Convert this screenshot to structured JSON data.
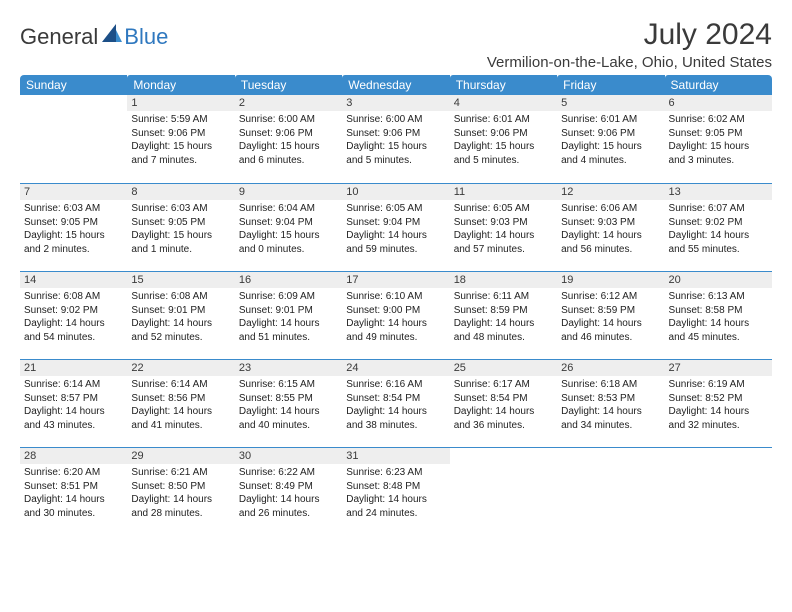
{
  "logo": {
    "text1": "General",
    "text2": "Blue"
  },
  "title": "July 2024",
  "location": "Vermilion-on-the-Lake, Ohio, United States",
  "theme": {
    "header_bg": "#3a8bcc",
    "header_fg": "#ffffff",
    "row_divider": "#3a8bcc",
    "daynum_bg": "#eeeeee",
    "page_bg": "#ffffff",
    "text_color": "#3a3a3a"
  },
  "weekdays": [
    "Sunday",
    "Monday",
    "Tuesday",
    "Wednesday",
    "Thursday",
    "Friday",
    "Saturday"
  ],
  "weeks": [
    [
      {
        "n": "",
        "sunrise": "",
        "sunset": "",
        "daylight": ""
      },
      {
        "n": "1",
        "sunrise": "Sunrise: 5:59 AM",
        "sunset": "Sunset: 9:06 PM",
        "daylight": "Daylight: 15 hours and 7 minutes."
      },
      {
        "n": "2",
        "sunrise": "Sunrise: 6:00 AM",
        "sunset": "Sunset: 9:06 PM",
        "daylight": "Daylight: 15 hours and 6 minutes."
      },
      {
        "n": "3",
        "sunrise": "Sunrise: 6:00 AM",
        "sunset": "Sunset: 9:06 PM",
        "daylight": "Daylight: 15 hours and 5 minutes."
      },
      {
        "n": "4",
        "sunrise": "Sunrise: 6:01 AM",
        "sunset": "Sunset: 9:06 PM",
        "daylight": "Daylight: 15 hours and 5 minutes."
      },
      {
        "n": "5",
        "sunrise": "Sunrise: 6:01 AM",
        "sunset": "Sunset: 9:06 PM",
        "daylight": "Daylight: 15 hours and 4 minutes."
      },
      {
        "n": "6",
        "sunrise": "Sunrise: 6:02 AM",
        "sunset": "Sunset: 9:05 PM",
        "daylight": "Daylight: 15 hours and 3 minutes."
      }
    ],
    [
      {
        "n": "7",
        "sunrise": "Sunrise: 6:03 AM",
        "sunset": "Sunset: 9:05 PM",
        "daylight": "Daylight: 15 hours and 2 minutes."
      },
      {
        "n": "8",
        "sunrise": "Sunrise: 6:03 AM",
        "sunset": "Sunset: 9:05 PM",
        "daylight": "Daylight: 15 hours and 1 minute."
      },
      {
        "n": "9",
        "sunrise": "Sunrise: 6:04 AM",
        "sunset": "Sunset: 9:04 PM",
        "daylight": "Daylight: 15 hours and 0 minutes."
      },
      {
        "n": "10",
        "sunrise": "Sunrise: 6:05 AM",
        "sunset": "Sunset: 9:04 PM",
        "daylight": "Daylight: 14 hours and 59 minutes."
      },
      {
        "n": "11",
        "sunrise": "Sunrise: 6:05 AM",
        "sunset": "Sunset: 9:03 PM",
        "daylight": "Daylight: 14 hours and 57 minutes."
      },
      {
        "n": "12",
        "sunrise": "Sunrise: 6:06 AM",
        "sunset": "Sunset: 9:03 PM",
        "daylight": "Daylight: 14 hours and 56 minutes."
      },
      {
        "n": "13",
        "sunrise": "Sunrise: 6:07 AM",
        "sunset": "Sunset: 9:02 PM",
        "daylight": "Daylight: 14 hours and 55 minutes."
      }
    ],
    [
      {
        "n": "14",
        "sunrise": "Sunrise: 6:08 AM",
        "sunset": "Sunset: 9:02 PM",
        "daylight": "Daylight: 14 hours and 54 minutes."
      },
      {
        "n": "15",
        "sunrise": "Sunrise: 6:08 AM",
        "sunset": "Sunset: 9:01 PM",
        "daylight": "Daylight: 14 hours and 52 minutes."
      },
      {
        "n": "16",
        "sunrise": "Sunrise: 6:09 AM",
        "sunset": "Sunset: 9:01 PM",
        "daylight": "Daylight: 14 hours and 51 minutes."
      },
      {
        "n": "17",
        "sunrise": "Sunrise: 6:10 AM",
        "sunset": "Sunset: 9:00 PM",
        "daylight": "Daylight: 14 hours and 49 minutes."
      },
      {
        "n": "18",
        "sunrise": "Sunrise: 6:11 AM",
        "sunset": "Sunset: 8:59 PM",
        "daylight": "Daylight: 14 hours and 48 minutes."
      },
      {
        "n": "19",
        "sunrise": "Sunrise: 6:12 AM",
        "sunset": "Sunset: 8:59 PM",
        "daylight": "Daylight: 14 hours and 46 minutes."
      },
      {
        "n": "20",
        "sunrise": "Sunrise: 6:13 AM",
        "sunset": "Sunset: 8:58 PM",
        "daylight": "Daylight: 14 hours and 45 minutes."
      }
    ],
    [
      {
        "n": "21",
        "sunrise": "Sunrise: 6:14 AM",
        "sunset": "Sunset: 8:57 PM",
        "daylight": "Daylight: 14 hours and 43 minutes."
      },
      {
        "n": "22",
        "sunrise": "Sunrise: 6:14 AM",
        "sunset": "Sunset: 8:56 PM",
        "daylight": "Daylight: 14 hours and 41 minutes."
      },
      {
        "n": "23",
        "sunrise": "Sunrise: 6:15 AM",
        "sunset": "Sunset: 8:55 PM",
        "daylight": "Daylight: 14 hours and 40 minutes."
      },
      {
        "n": "24",
        "sunrise": "Sunrise: 6:16 AM",
        "sunset": "Sunset: 8:54 PM",
        "daylight": "Daylight: 14 hours and 38 minutes."
      },
      {
        "n": "25",
        "sunrise": "Sunrise: 6:17 AM",
        "sunset": "Sunset: 8:54 PM",
        "daylight": "Daylight: 14 hours and 36 minutes."
      },
      {
        "n": "26",
        "sunrise": "Sunrise: 6:18 AM",
        "sunset": "Sunset: 8:53 PM",
        "daylight": "Daylight: 14 hours and 34 minutes."
      },
      {
        "n": "27",
        "sunrise": "Sunrise: 6:19 AM",
        "sunset": "Sunset: 8:52 PM",
        "daylight": "Daylight: 14 hours and 32 minutes."
      }
    ],
    [
      {
        "n": "28",
        "sunrise": "Sunrise: 6:20 AM",
        "sunset": "Sunset: 8:51 PM",
        "daylight": "Daylight: 14 hours and 30 minutes."
      },
      {
        "n": "29",
        "sunrise": "Sunrise: 6:21 AM",
        "sunset": "Sunset: 8:50 PM",
        "daylight": "Daylight: 14 hours and 28 minutes."
      },
      {
        "n": "30",
        "sunrise": "Sunrise: 6:22 AM",
        "sunset": "Sunset: 8:49 PM",
        "daylight": "Daylight: 14 hours and 26 minutes."
      },
      {
        "n": "31",
        "sunrise": "Sunrise: 6:23 AM",
        "sunset": "Sunset: 8:48 PM",
        "daylight": "Daylight: 14 hours and 24 minutes."
      },
      {
        "n": "",
        "sunrise": "",
        "sunset": "",
        "daylight": ""
      },
      {
        "n": "",
        "sunrise": "",
        "sunset": "",
        "daylight": ""
      },
      {
        "n": "",
        "sunrise": "",
        "sunset": "",
        "daylight": ""
      }
    ]
  ]
}
